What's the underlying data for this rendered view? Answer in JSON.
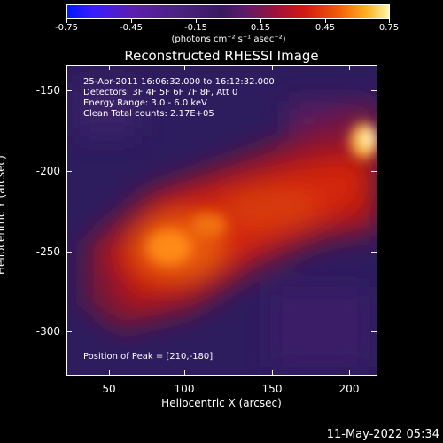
{
  "colorbar": {
    "ticks": [
      "-0.75",
      "-0.45",
      "-0.15",
      "0.15",
      "0.45",
      "0.75"
    ],
    "units": "(photons cm⁻² s⁻¹ asec⁻²)"
  },
  "title": "Reconstructed RHESSI Image",
  "annotations": {
    "time_range": "25-Apr-2011 16:06:32.000 to 16:12:32.000",
    "detectors": "Detectors: 3F 4F 5F 6F 7F 8F, Att 0",
    "energy": "Energy Range: 3.0 - 6.0 keV",
    "clean": "Clean    Total counts: 2.17E+05",
    "peak": "Position of Peak = [210,-180]"
  },
  "axes": {
    "xlabel": "Heliocentric X (arcsec)",
    "ylabel": "Heliocentric Y (arcsec)",
    "xticks": [
      "50",
      "100",
      "150",
      "200"
    ],
    "yticks": [
      "-150",
      "-200",
      "-250",
      "-300"
    ]
  },
  "timestamp": "11-May-2022 05:34"
}
